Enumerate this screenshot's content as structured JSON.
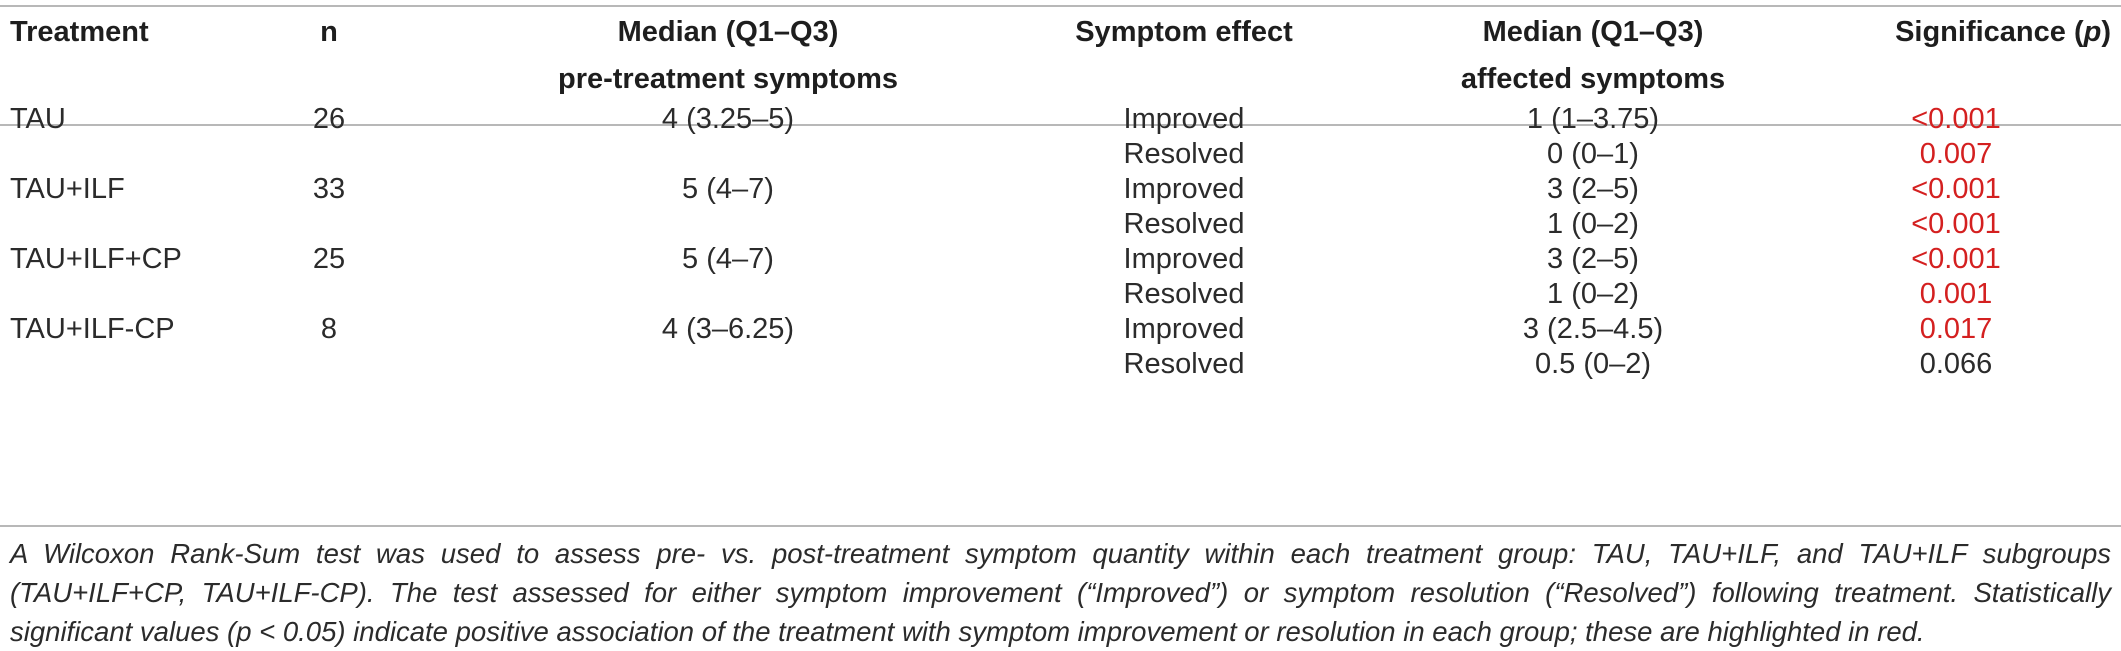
{
  "table": {
    "headers": {
      "treatment": "Treatment",
      "n": "n",
      "pre_line1": "Median (Q1–Q3)",
      "pre_line2": "pre-treatment symptoms",
      "effect": "Symptom effect",
      "aff_line1": "Median (Q1–Q3)",
      "aff_line2": "affected symptoms",
      "significance_prefix": "Significance (",
      "significance_p": "p",
      "significance_suffix": ")"
    },
    "rows": [
      {
        "treatment": "TAU",
        "n": "26",
        "pre": "4 (3.25–5)",
        "effect": "Improved",
        "affected": "1 (1–3.75)",
        "p": "<0.001",
        "significant": true
      },
      {
        "treatment": "",
        "n": "",
        "pre": "",
        "effect": "Resolved",
        "affected": "0 (0–1)",
        "p": "0.007",
        "significant": true
      },
      {
        "treatment": "TAU+ILF",
        "n": "33",
        "pre": "5 (4–7)",
        "effect": "Improved",
        "affected": "3 (2–5)",
        "p": "<0.001",
        "significant": true
      },
      {
        "treatment": "",
        "n": "",
        "pre": "",
        "effect": "Resolved",
        "affected": "1 (0–2)",
        "p": "<0.001",
        "significant": true
      },
      {
        "treatment": "TAU+ILF+CP",
        "n": "25",
        "pre": "5 (4–7)",
        "effect": "Improved",
        "affected": "3 (2–5)",
        "p": "<0.001",
        "significant": true
      },
      {
        "treatment": "",
        "n": "",
        "pre": "",
        "effect": "Resolved",
        "affected": "1 (0–2)",
        "p": "0.001",
        "significant": true
      },
      {
        "treatment": "TAU+ILF-CP",
        "n": "8",
        "pre": "4 (3–6.25)",
        "effect": "Improved",
        "affected": "3 (2.5–4.5)",
        "p": "0.017",
        "significant": true
      },
      {
        "treatment": "",
        "n": "",
        "pre": "",
        "effect": "Resolved",
        "affected": "0.5 (0–2)",
        "p": "0.066",
        "significant": false
      }
    ],
    "footnote": "A Wilcoxon Rank-Sum test was used to assess pre- vs. post-treatment symptom quantity within each treatment group: TAU, TAU+ILF, and TAU+ILF subgroups (TAU+ILF+CP, TAU+ILF-CP). The test assessed for either symptom improvement (“Improved”) or symptom resolution (“Resolved”) following treatment. Statistically significant values (p < 0.05) indicate positive association of the treatment with symptom improvement or resolution in each group; these are highlighted in red.",
    "colors": {
      "significant": "#d42020",
      "text": "#2b2b2b",
      "rule": "#b8b8b8"
    }
  }
}
